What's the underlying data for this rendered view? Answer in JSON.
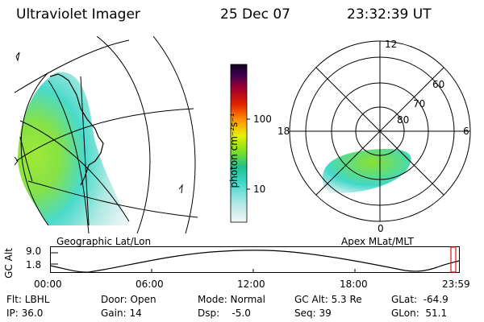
{
  "header": {
    "instrument": "Ultraviolet Imager",
    "date": "25 Dec 07",
    "time": "23:32:39 UT"
  },
  "colorbar": {
    "unit_label": "photon cm⁻²s⁻¹",
    "ticks": [
      "100",
      "10"
    ]
  },
  "polar_plot": {
    "mlt_labels": [
      "12",
      "18",
      "6",
      "0"
    ],
    "lat_labels": [
      "60",
      "70",
      "80"
    ]
  },
  "panel_labels": {
    "left": "Geographic Lat/Lon",
    "right": "Apex MLat/MLT"
  },
  "altitude_plot": {
    "y_label": "GC Alt",
    "y_max": "9.0",
    "y_min": "1.8",
    "x_ticks": [
      "00:00",
      "06:00",
      "12:00",
      "18:00",
      "23:59"
    ]
  },
  "info": {
    "filter": "Flt: LBHL",
    "ip": "IP: 36.0",
    "door": "Door: Open",
    "gain": "Gain: 14",
    "mode": "Mode: Normal",
    "dsp": "Dsp:    -5.0",
    "gc_alt": "GC Alt: 5.3 Re",
    "seq": "Seq: 39",
    "glat": "GLat:  -64.9",
    "glon": "GLon:  51.1"
  },
  "colors": {
    "aurora_green": "#7fe03c",
    "aurora_cyan": "#40d8c8",
    "aurora_pale": "#d8f0f0",
    "marker_red": "#e01010"
  }
}
